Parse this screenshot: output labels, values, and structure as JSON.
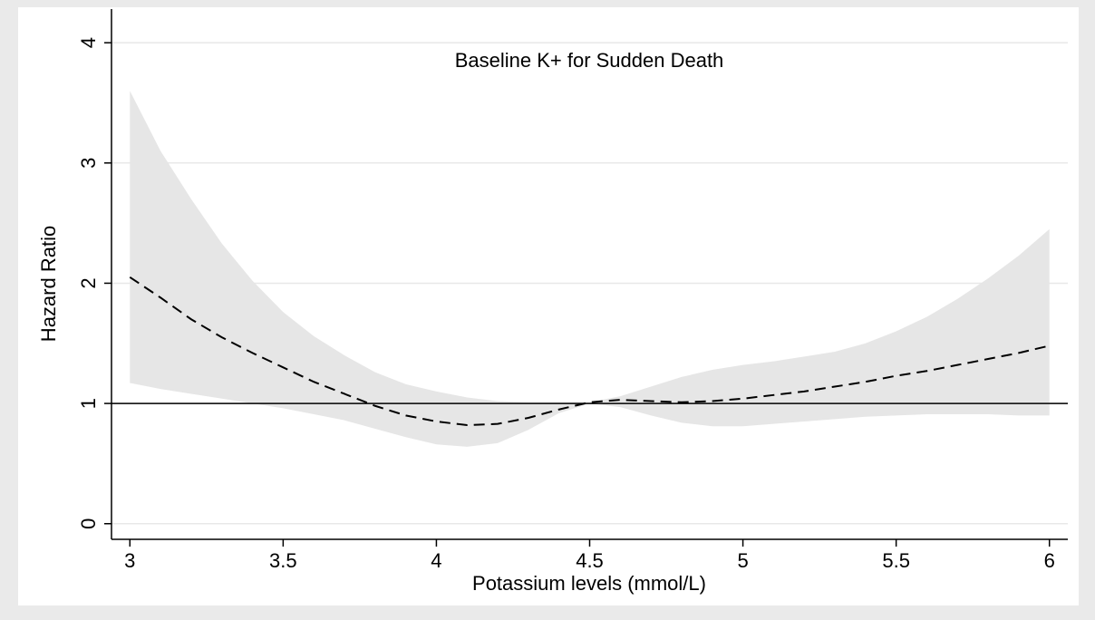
{
  "chart_data": {
    "type": "line",
    "title": "Baseline K+ for Sudden Death",
    "xlabel": "Potassium levels (mmol/L)",
    "ylabel": "Hazard Ratio",
    "x": [
      3,
      3.1,
      3.2,
      3.3,
      3.4,
      3.5,
      3.6,
      3.7,
      3.8,
      3.9,
      4,
      4.1,
      4.2,
      4.3,
      4.4,
      4.5,
      4.6,
      4.7,
      4.8,
      4.9,
      5,
      5.1,
      5.2,
      5.3,
      5.4,
      5.5,
      5.6,
      5.7,
      5.8,
      5.9,
      6
    ],
    "values": [
      2.05,
      1.88,
      1.7,
      1.55,
      1.42,
      1.3,
      1.18,
      1.08,
      0.98,
      0.9,
      0.85,
      0.82,
      0.83,
      0.88,
      0.95,
      1.01,
      1.03,
      1.02,
      1.01,
      1.02,
      1.04,
      1.07,
      1.1,
      1.14,
      1.18,
      1.23,
      1.27,
      1.32,
      1.37,
      1.42,
      1.48
    ],
    "upper": [
      3.6,
      3.1,
      2.7,
      2.33,
      2.02,
      1.76,
      1.56,
      1.4,
      1.26,
      1.16,
      1.1,
      1.05,
      1.02,
      1.01,
      1.01,
      1.01,
      1.06,
      1.14,
      1.22,
      1.28,
      1.32,
      1.35,
      1.39,
      1.43,
      1.5,
      1.6,
      1.72,
      1.87,
      2.04,
      2.23,
      2.45
    ],
    "lower": [
      1.17,
      1.12,
      1.08,
      1.04,
      1.0,
      0.96,
      0.91,
      0.86,
      0.79,
      0.72,
      0.66,
      0.64,
      0.67,
      0.78,
      0.92,
      1.0,
      0.97,
      0.9,
      0.84,
      0.81,
      0.81,
      0.83,
      0.85,
      0.87,
      0.89,
      0.9,
      0.91,
      0.91,
      0.91,
      0.9,
      0.9
    ],
    "color": "#000000",
    "band_color": "#e6e6e6",
    "reference_line": 1,
    "xlim": [
      2.94,
      6.06
    ],
    "ylim": [
      -0.13,
      4.28
    ],
    "xticks": [
      3,
      3.5,
      4,
      4.5,
      5,
      5.5,
      6
    ],
    "yticks": [
      0,
      1,
      2,
      3,
      4
    ],
    "grid": true
  }
}
